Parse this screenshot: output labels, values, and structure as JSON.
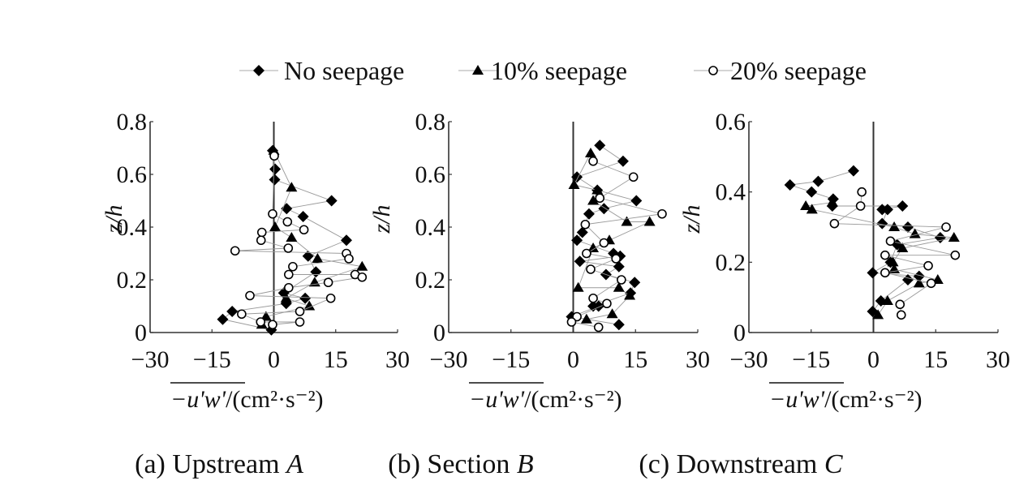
{
  "legend": {
    "entries": [
      {
        "label": "No seepage",
        "marker": "filled-diamond"
      },
      {
        "label": "10% seepage",
        "marker": "filled-triangle"
      },
      {
        "label": "20% seepage",
        "marker": "open-circle"
      }
    ],
    "placement": "top"
  },
  "colors": {
    "markers": "#000000",
    "connector_lines": "#9a9a9a",
    "axes": "#222222"
  },
  "chart_data": [
    {
      "type": "scatter",
      "caption_prefix": "(a) Upstream ",
      "caption_italic": "A",
      "ylabel": "z/h",
      "xlabel_over": "−u'w'",
      "xlabel_rest": "/(cm²·s⁻²)",
      "xlim": [
        -30,
        30
      ],
      "ylim": [
        0,
        0.8
      ],
      "xticks": [
        "−30",
        "−15",
        "0",
        "15",
        "30"
      ],
      "xtick_values": [
        -30,
        -15,
        0,
        15,
        30
      ],
      "yticks": [
        "0",
        "0.2",
        "0.4",
        "0.6",
        "0.8"
      ],
      "ytick_values": [
        0,
        0.2,
        0.4,
        0.6,
        0.8
      ],
      "series": [
        {
          "name": "No seepage",
          "points": [
            [
              -0.3,
              0.69
            ],
            [
              0.3,
              0.62
            ],
            [
              0.2,
              0.58
            ],
            [
              14.0,
              0.5
            ],
            [
              3.1,
              0.47
            ],
            [
              7.1,
              0.44
            ],
            [
              17.6,
              0.35
            ],
            [
              8.3,
              0.29
            ],
            [
              10.2,
              0.23
            ],
            [
              2.4,
              0.15
            ],
            [
              7.6,
              0.13
            ],
            [
              3.0,
              0.11
            ],
            [
              -10.1,
              0.08
            ],
            [
              -12.4,
              0.05
            ],
            [
              -0.6,
              0.01
            ]
          ]
        },
        {
          "name": "10% seepage",
          "points": [
            [
              0,
              0.69
            ],
            [
              4.3,
              0.55
            ],
            [
              0.3,
              0.4
            ],
            [
              4.3,
              0.36
            ],
            [
              10.6,
              0.28
            ],
            [
              21.4,
              0.25
            ],
            [
              9.9,
              0.19
            ],
            [
              3.0,
              0.13
            ],
            [
              8.6,
              0.1
            ],
            [
              -1.9,
              0.06
            ],
            [
              -2.9,
              0.03
            ]
          ]
        },
        {
          "name": "20% seepage",
          "points": [
            [
              0.1,
              0.67
            ],
            [
              -0.3,
              0.45
            ],
            [
              3.3,
              0.42
            ],
            [
              7.3,
              0.39
            ],
            [
              -2.9,
              0.38
            ],
            [
              -3.1,
              0.35
            ],
            [
              3.5,
              0.32
            ],
            [
              -9.4,
              0.31
            ],
            [
              17.6,
              0.3
            ],
            [
              18.2,
              0.28
            ],
            [
              4.6,
              0.25
            ],
            [
              3.6,
              0.22
            ],
            [
              19.7,
              0.22
            ],
            [
              21.4,
              0.21
            ],
            [
              13.2,
              0.19
            ],
            [
              3.6,
              0.17
            ],
            [
              -5.8,
              0.14
            ],
            [
              13.8,
              0.13
            ],
            [
              6.3,
              0.08
            ],
            [
              -7.8,
              0.07
            ],
            [
              -3.2,
              0.04
            ],
            [
              6.3,
              0.04
            ],
            [
              -0.3,
              0.03
            ]
          ]
        }
      ]
    },
    {
      "type": "scatter",
      "caption_prefix": "(b) Section ",
      "caption_italic": "B",
      "ylabel": "z/h",
      "xlabel_over": "−u'w'",
      "xlabel_rest": "/(cm²·s⁻²)",
      "xlim": [
        -30,
        30
      ],
      "ylim": [
        0,
        0.8
      ],
      "xticks": [
        "−30",
        "−15",
        "0",
        "15",
        "30"
      ],
      "xtick_values": [
        -30,
        -15,
        0,
        15,
        30
      ],
      "yticks": [
        "0",
        "0.2",
        "0.4",
        "0.6",
        "0.8"
      ],
      "ytick_values": [
        0,
        0.2,
        0.4,
        0.6,
        0.8
      ],
      "series": [
        {
          "name": "No seepage",
          "points": [
            [
              6.4,
              0.71
            ],
            [
              12.0,
              0.65
            ],
            [
              0.9,
              0.59
            ],
            [
              5.8,
              0.54
            ],
            [
              15.2,
              0.5
            ],
            [
              7.4,
              0.47
            ],
            [
              3.8,
              0.45
            ],
            [
              2.2,
              0.38
            ],
            [
              0.9,
              0.35
            ],
            [
              9.7,
              0.3
            ],
            [
              11.3,
              0.29
            ],
            [
              1.6,
              0.27
            ],
            [
              11.0,
              0.25
            ],
            [
              7.9,
              0.22
            ],
            [
              14.8,
              0.19
            ],
            [
              13.8,
              0.15
            ],
            [
              4.8,
              0.1
            ],
            [
              6.1,
              0.1
            ],
            [
              -0.4,
              0.06
            ],
            [
              11.0,
              0.03
            ]
          ]
        },
        {
          "name": "10% seepage",
          "points": [
            [
              4.2,
              0.68
            ],
            [
              0.2,
              0.56
            ],
            [
              5.8,
              0.54
            ],
            [
              4.8,
              0.5
            ],
            [
              12.9,
              0.42
            ],
            [
              18.4,
              0.42
            ],
            [
              8.7,
              0.35
            ],
            [
              4.8,
              0.32
            ],
            [
              1.2,
              0.17
            ],
            [
              11.0,
              0.17
            ],
            [
              13.6,
              0.14
            ],
            [
              9.4,
              0.07
            ],
            [
              3.2,
              0.05
            ]
          ]
        },
        {
          "name": "20% seepage",
          "points": [
            [
              4.8,
              0.65
            ],
            [
              14.5,
              0.59
            ],
            [
              6.4,
              0.51
            ],
            [
              21.4,
              0.45
            ],
            [
              2.9,
              0.41
            ],
            [
              7.4,
              0.34
            ],
            [
              3.2,
              0.3
            ],
            [
              10.3,
              0.28
            ],
            [
              4.2,
              0.24
            ],
            [
              11.6,
              0.2
            ],
            [
              4.8,
              0.13
            ],
            [
              8.1,
              0.11
            ],
            [
              0.9,
              0.06
            ],
            [
              -0.4,
              0.04
            ],
            [
              6.1,
              0.02
            ]
          ]
        }
      ]
    },
    {
      "type": "scatter",
      "caption_prefix": "(c) Downstream ",
      "caption_italic": "C",
      "ylabel": "z/h",
      "xlabel_over": "−u'w'",
      "xlabel_rest": "/(cm²·s⁻²)",
      "xlim": [
        -30,
        30
      ],
      "ylim": [
        0,
        0.6
      ],
      "xticks": [
        "−30",
        "−15",
        "0",
        "15",
        "30"
      ],
      "xtick_values": [
        -30,
        -15,
        0,
        15,
        30
      ],
      "yticks": [
        "0",
        "0.2",
        "0.4",
        "0.6"
      ],
      "ytick_values": [
        0,
        0.2,
        0.4,
        0.6
      ],
      "series": [
        {
          "name": "No seepage",
          "points": [
            [
              -4.8,
              0.46
            ],
            [
              -13.3,
              0.43
            ],
            [
              -20.1,
              0.42
            ],
            [
              -14.9,
              0.4
            ],
            [
              -9.7,
              0.38
            ],
            [
              -9.9,
              0.36
            ],
            [
              7.0,
              0.36
            ],
            [
              2.1,
              0.35
            ],
            [
              3.4,
              0.35
            ],
            [
              2.1,
              0.31
            ],
            [
              8.3,
              0.3
            ],
            [
              16.1,
              0.27
            ],
            [
              5.7,
              0.25
            ],
            [
              4.1,
              0.2
            ],
            [
              -0.2,
              0.17
            ],
            [
              11.0,
              0.16
            ],
            [
              8.3,
              0.15
            ],
            [
              1.8,
              0.09
            ],
            [
              -0.2,
              0.06
            ]
          ]
        },
        {
          "name": "10% seepage",
          "points": [
            [
              -9.9,
              0.37
            ],
            [
              -16.3,
              0.36
            ],
            [
              -14.8,
              0.35
            ],
            [
              5.0,
              0.3
            ],
            [
              10.0,
              0.28
            ],
            [
              19.4,
              0.27
            ],
            [
              7.0,
              0.24
            ],
            [
              4.7,
              0.2
            ],
            [
              5.0,
              0.18
            ],
            [
              15.5,
              0.15
            ],
            [
              11.0,
              0.14
            ],
            [
              3.4,
              0.09
            ],
            [
              1.1,
              0.05
            ]
          ]
        },
        {
          "name": "20% seepage",
          "points": [
            [
              -2.8,
              0.4
            ],
            [
              -3.1,
              0.36
            ],
            [
              -9.4,
              0.31
            ],
            [
              17.5,
              0.3
            ],
            [
              4.1,
              0.26
            ],
            [
              19.7,
              0.22
            ],
            [
              2.8,
              0.22
            ],
            [
              13.2,
              0.19
            ],
            [
              2.8,
              0.17
            ],
            [
              13.9,
              0.14
            ],
            [
              6.4,
              0.08
            ],
            [
              6.7,
              0.05
            ]
          ]
        }
      ]
    }
  ]
}
